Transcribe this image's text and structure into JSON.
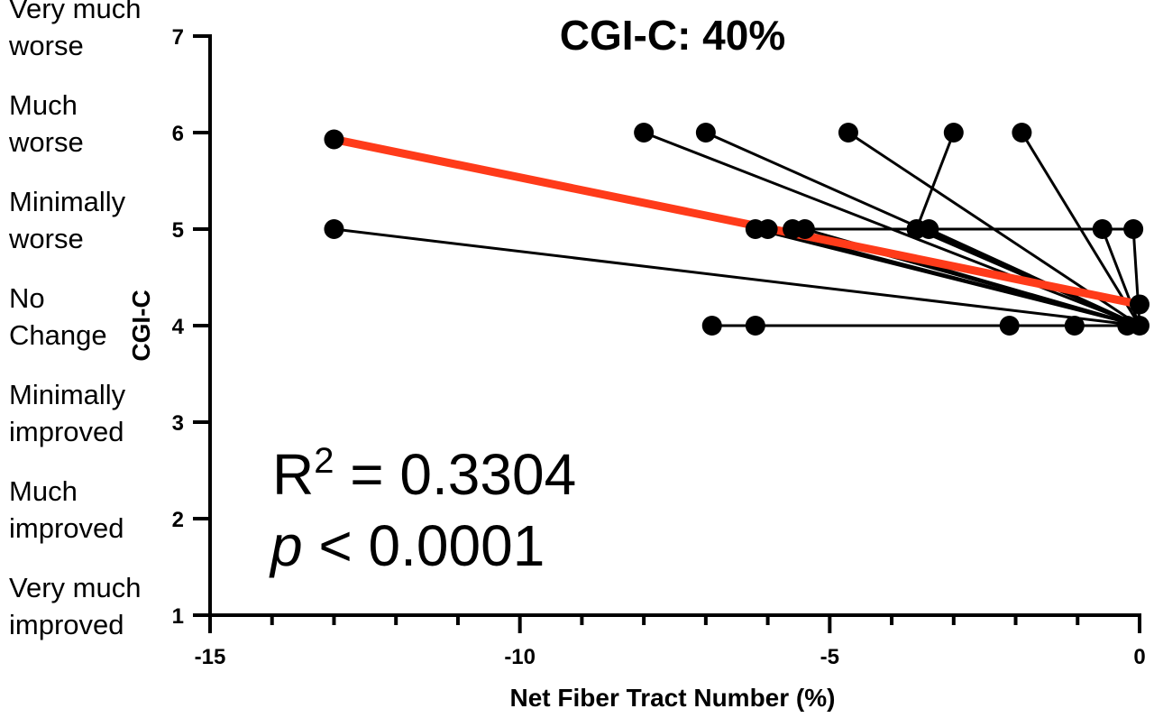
{
  "chart_data": {
    "type": "line",
    "title": "CGI-C: 40%",
    "xlabel": "Net Fiber Tract Number (%)",
    "ylabel": "CGI-C",
    "xlim": [
      -15,
      0
    ],
    "ylim": [
      1,
      7
    ],
    "x_ticks": [
      "-15",
      "-10",
      "-5",
      "0"
    ],
    "y_ticks": [
      "1",
      "2",
      "3",
      "4",
      "5",
      "6",
      "7"
    ],
    "y_category_labels": [
      {
        "y": 7,
        "line1": "Very much",
        "line2": "worse"
      },
      {
        "y": 6,
        "line1": "Much",
        "line2": "worse"
      },
      {
        "y": 5,
        "line1": "Minimally",
        "line2": "worse"
      },
      {
        "y": 4,
        "line1": "No",
        "line2": "Change"
      },
      {
        "y": 3,
        "line1": "Minimally",
        "line2": "improved"
      },
      {
        "y": 2,
        "line1": "Much",
        "line2": "improved"
      },
      {
        "y": 1,
        "line1": "Very much",
        "line2": "improved"
      }
    ],
    "segments": [
      {
        "x": [
          -13.0,
          0.0
        ],
        "y": [
          5.0,
          4.0
        ]
      },
      {
        "x": [
          -8.0,
          0.0
        ],
        "y": [
          6.0,
          4.0
        ]
      },
      {
        "x": [
          -7.0,
          0.0
        ],
        "y": [
          6.0,
          4.0
        ]
      },
      {
        "x": [
          -4.7,
          0.0
        ],
        "y": [
          6.0,
          4.0
        ]
      },
      {
        "x": [
          -3.0,
          -3.6
        ],
        "y": [
          6.0,
          5.0
        ]
      },
      {
        "x": [
          -3.6,
          0.0
        ],
        "y": [
          5.0,
          4.0
        ]
      },
      {
        "x": [
          -1.9,
          0.0
        ],
        "y": [
          6.0,
          4.0
        ]
      },
      {
        "x": [
          -6.2,
          0.0
        ],
        "y": [
          5.0,
          4.0
        ]
      },
      {
        "x": [
          -6.0,
          0.0
        ],
        "y": [
          5.0,
          4.0
        ]
      },
      {
        "x": [
          -5.6,
          0.0
        ],
        "y": [
          5.0,
          4.0
        ]
      },
      {
        "x": [
          -5.4,
          0.0
        ],
        "y": [
          5.0,
          4.0
        ]
      },
      {
        "x": [
          -3.4,
          0.0
        ],
        "y": [
          5.0,
          4.0
        ]
      },
      {
        "x": [
          -5.6,
          -0.1
        ],
        "y": [
          5.0,
          5.0
        ]
      },
      {
        "x": [
          -0.6,
          0.0
        ],
        "y": [
          5.0,
          4.0
        ]
      },
      {
        "x": [
          -0.1,
          0.0
        ],
        "y": [
          5.0,
          4.0
        ]
      },
      {
        "x": [
          -6.9,
          0.0
        ],
        "y": [
          4.0,
          4.0
        ]
      }
    ],
    "points": [
      {
        "x": -13.0,
        "y": 5.0
      },
      {
        "x": -13.0,
        "y": 5.93
      },
      {
        "x": -8.0,
        "y": 6.0
      },
      {
        "x": -7.0,
        "y": 6.0
      },
      {
        "x": -4.7,
        "y": 6.0
      },
      {
        "x": -3.0,
        "y": 6.0
      },
      {
        "x": -1.9,
        "y": 6.0
      },
      {
        "x": -6.2,
        "y": 5.0
      },
      {
        "x": -6.0,
        "y": 5.0
      },
      {
        "x": -5.6,
        "y": 5.0
      },
      {
        "x": -5.4,
        "y": 5.0
      },
      {
        "x": -3.6,
        "y": 5.0
      },
      {
        "x": -3.4,
        "y": 5.0
      },
      {
        "x": -0.6,
        "y": 5.0
      },
      {
        "x": -0.1,
        "y": 5.0
      },
      {
        "x": 0.0,
        "y": 4.22
      },
      {
        "x": -6.9,
        "y": 4.0
      },
      {
        "x": -6.2,
        "y": 4.0
      },
      {
        "x": -2.1,
        "y": 4.0
      },
      {
        "x": -1.05,
        "y": 4.0
      },
      {
        "x": -0.2,
        "y": 4.0
      },
      {
        "x": 0.0,
        "y": 4.0
      }
    ],
    "regression": {
      "x": [
        -13.0,
        0.0
      ],
      "y": [
        5.93,
        4.22
      ],
      "color": "#ff3b1a"
    },
    "annotations": {
      "r2_prefix": "R",
      "r2_sup": "2",
      "r2_value": " = 0.3304",
      "p_symbol": "p",
      "p_value": " < 0.0001"
    },
    "colors": {
      "points": "#000000",
      "lines": "#000000",
      "regression": "#ff3b1a"
    }
  }
}
